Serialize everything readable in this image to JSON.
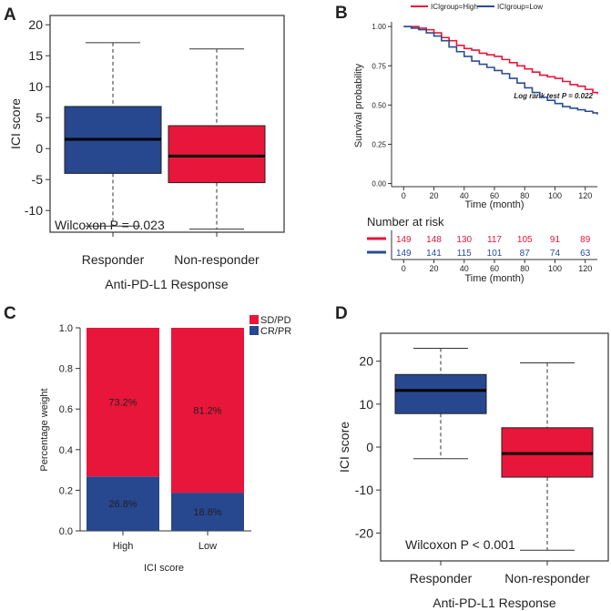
{
  "colors": {
    "high": "#e8163a",
    "low": "#2a4d94",
    "box_blue": "#27478f",
    "box_red": "#e8163a",
    "text": "#222222"
  },
  "panel_labels": {
    "a": "A",
    "b": "B",
    "c": "C",
    "d": "D"
  },
  "chart_data": [
    {
      "panel": "A",
      "type": "boxplot",
      "ylabel": "ICI score",
      "xlabel": "Anti-PD-L1 Response",
      "ylim": [
        -13.5,
        21.5
      ],
      "yticks": [
        -10,
        -5,
        0,
        5,
        10,
        15,
        20
      ],
      "categories": [
        "Responder",
        "Non-responder"
      ],
      "boxes": [
        {
          "name": "Responder",
          "whisker_low": -12.5,
          "q1": -4.0,
          "median": 1.5,
          "q3": 6.8,
          "whisker_high": 17.1,
          "color": "#27478f"
        },
        {
          "name": "Non-responder",
          "whisker_low": -13.0,
          "q1": -5.5,
          "median": -1.2,
          "q3": 3.7,
          "whisker_high": 16.1,
          "color": "#e8163a"
        }
      ],
      "annotation": "Wilcoxon P = 0.023"
    },
    {
      "panel": "B",
      "type": "line",
      "subtype": "kaplan-meier",
      "ylabel": "Survival probability",
      "xlabel": "Time (month)",
      "xlim": [
        -8,
        128
      ],
      "ylim": [
        -0.02,
        1.03
      ],
      "xticks": [
        0,
        20,
        40,
        60,
        80,
        100,
        120
      ],
      "yticks": [
        0.0,
        0.25,
        0.5,
        0.75,
        1.0
      ],
      "ytick_labels": [
        "0.00",
        "0.25",
        "0.50",
        "0.75",
        "1.00"
      ],
      "legend": [
        "ICIgroup=High",
        "ICIgroup=Low"
      ],
      "series": [
        {
          "name": "ICIgroup=High",
          "color": "#e8163a",
          "x": [
            0,
            5,
            10,
            15,
            20,
            25,
            30,
            35,
            40,
            45,
            50,
            55,
            60,
            65,
            70,
            75,
            80,
            85,
            90,
            95,
            100,
            105,
            110,
            115,
            120,
            125,
            128
          ],
          "y": [
            1.0,
            1.0,
            0.99,
            0.98,
            0.96,
            0.93,
            0.91,
            0.88,
            0.86,
            0.85,
            0.83,
            0.82,
            0.81,
            0.79,
            0.77,
            0.75,
            0.73,
            0.71,
            0.69,
            0.68,
            0.67,
            0.65,
            0.63,
            0.62,
            0.6,
            0.58,
            0.57
          ]
        },
        {
          "name": "ICIgroup=Low",
          "color": "#2a4d94",
          "x": [
            0,
            5,
            10,
            15,
            20,
            25,
            30,
            35,
            40,
            45,
            50,
            55,
            60,
            65,
            70,
            75,
            80,
            85,
            90,
            95,
            100,
            105,
            110,
            115,
            120,
            125,
            128
          ],
          "y": [
            1.0,
            0.99,
            0.98,
            0.96,
            0.94,
            0.91,
            0.87,
            0.84,
            0.81,
            0.78,
            0.76,
            0.74,
            0.72,
            0.7,
            0.67,
            0.64,
            0.61,
            0.58,
            0.55,
            0.53,
            0.51,
            0.49,
            0.48,
            0.47,
            0.46,
            0.45,
            0.44
          ]
        }
      ],
      "annotation": "Log rank test P = 0.022",
      "risk_table": {
        "title": "Number at risk",
        "xlabel": "Time (month)",
        "rows": [
          {
            "name": "ICIgroup=High",
            "color": "#e8163a",
            "values": [
              149,
              148,
              130,
              117,
              105,
              91,
              89
            ]
          },
          {
            "name": "ICIgroup=Low",
            "color": "#2a4d94",
            "values": [
              149,
              141,
              115,
              101,
              87,
              74,
              63
            ]
          }
        ]
      }
    },
    {
      "panel": "C",
      "type": "bar",
      "subtype": "stacked-percentage",
      "ylabel": "Percentage weight",
      "xlabel": "ICI score",
      "ylim": [
        0,
        1
      ],
      "yticks": [
        0.0,
        0.2,
        0.4,
        0.6,
        0.8,
        1.0
      ],
      "ytick_labels": [
        "0.0",
        "0.2",
        "0.4",
        "0.6",
        "0.8",
        "1.0"
      ],
      "categories": [
        "High",
        "Low"
      ],
      "legend": [
        "SD/PD",
        "CR/PR"
      ],
      "series": [
        {
          "name": "CR/PR",
          "color": "#27478f",
          "values": [
            0.268,
            0.188
          ],
          "labels": [
            "26.8%",
            "18.8%"
          ]
        },
        {
          "name": "SD/PD",
          "color": "#e8163a",
          "values": [
            0.732,
            0.812
          ],
          "labels": [
            "73.2%",
            "81.2%"
          ]
        }
      ]
    },
    {
      "panel": "D",
      "type": "boxplot",
      "ylabel": "ICI score",
      "xlabel": "Anti-PD-L1 Response",
      "ylim": [
        -26.5,
        26.5
      ],
      "yticks": [
        -20,
        -10,
        0,
        10,
        20
      ],
      "categories": [
        "Responder",
        "Non-responder"
      ],
      "boxes": [
        {
          "name": "Responder",
          "whisker_low": -2.7,
          "q1": 7.8,
          "median": 13.2,
          "q3": 16.9,
          "whisker_high": 23.0,
          "color": "#27478f"
        },
        {
          "name": "Non-responder",
          "whisker_low": -24.0,
          "q1": -7.0,
          "median": -1.5,
          "q3": 4.5,
          "whisker_high": 19.6,
          "color": "#e8163a"
        }
      ],
      "annotation": "Wilcoxon P < 0.001"
    }
  ]
}
